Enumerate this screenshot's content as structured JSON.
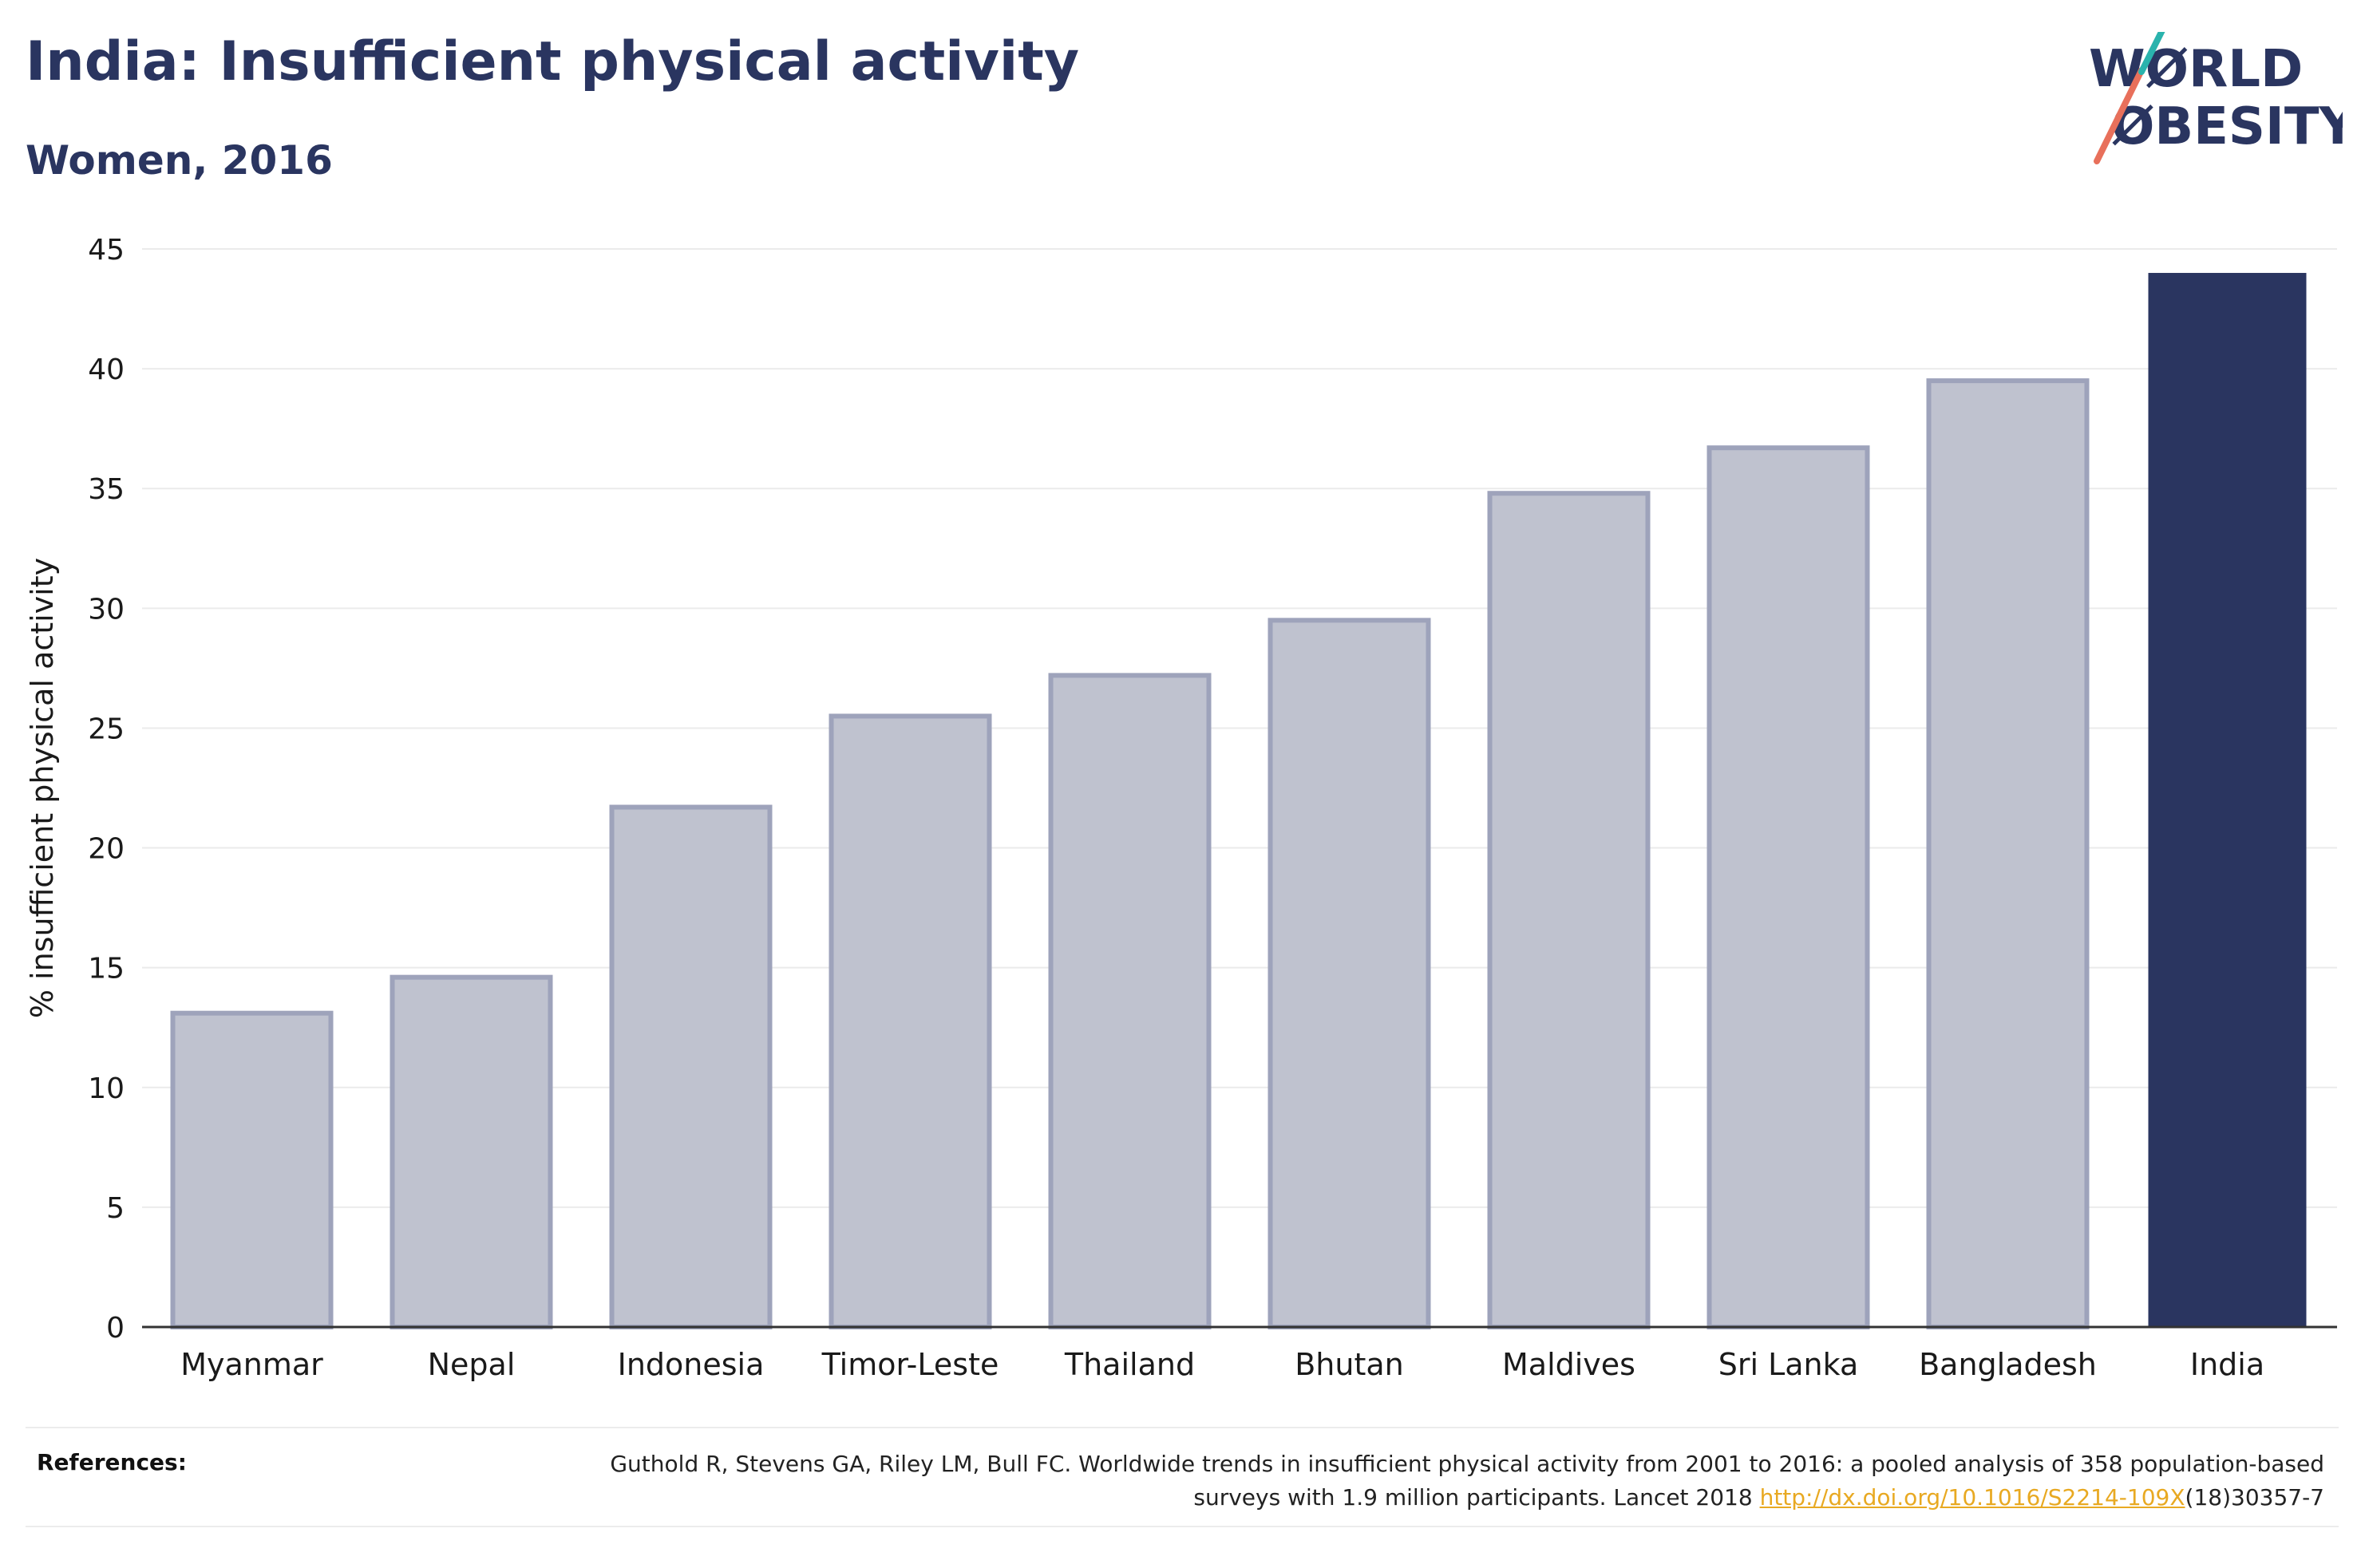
{
  "header": {
    "title": "India: Insufficient physical activity",
    "subtitle": "Women, 2016"
  },
  "logo": {
    "line1": "WØRLD",
    "line2": "ØBESITY",
    "text_color": "#2a3560",
    "slash_colors": [
      "#e8705b",
      "#2ab3ad"
    ]
  },
  "colors": {
    "highlight": "#2a3560",
    "other_fill": "#bfc2cf",
    "other_stroke": "#9ea3bb",
    "gridline": "#ebebeb",
    "link": "#e8a922"
  },
  "chart_data": {
    "type": "bar",
    "title": "India: Insufficient physical activity",
    "subtitle": "Women, 2016",
    "ylabel": "% insufficient physical activity",
    "xlabel": "",
    "categories": [
      "Myanmar",
      "Nepal",
      "Indonesia",
      "Timor-Leste",
      "Thailand",
      "Bhutan",
      "Maldives",
      "Sri Lanka",
      "Bangladesh",
      "India"
    ],
    "values": [
      13.1,
      14.6,
      21.7,
      25.5,
      27.2,
      29.5,
      34.8,
      36.7,
      39.5,
      44.0
    ],
    "highlight": "India",
    "ylim": [
      0,
      45
    ],
    "yticks": [
      0,
      5,
      10,
      15,
      20,
      25,
      30,
      35,
      40,
      45
    ],
    "grid": true,
    "legend": "none"
  },
  "references": {
    "label": "References:",
    "text_before_link": "Guthold R, Stevens GA, Riley LM, Bull FC. Worldwide trends in insufficient physical activity from 2001 to 2016: a pooled analysis of 358 population-based surveys with 1.9 million participants. Lancet 2018 ",
    "link_text": "http://dx.doi.org/10.1016/S2214-109X",
    "text_after_link": "(18)30357-7"
  }
}
